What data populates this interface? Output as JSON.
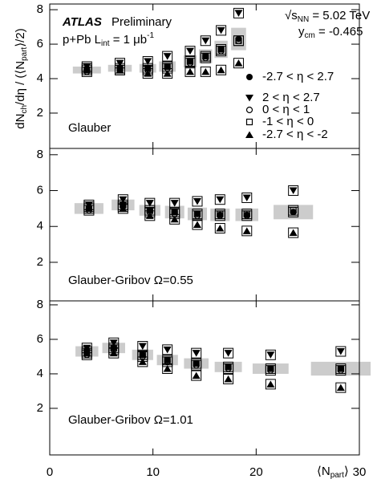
{
  "chart_data": [
    {
      "type": "scatter",
      "brand": "ATLAS",
      "status": "Preliminary",
      "luminosity": [
        "p+Pb L",
        "int",
        " = 1 μb",
        "-1"
      ],
      "energy": [
        "√s",
        "NN",
        " = 5.02 TeV"
      ],
      "rapidity": [
        "y",
        "cm",
        " = -0.465"
      ],
      "ylabel": [
        "dN",
        "ch",
        "/dη / (⟨N",
        "part",
        "⟩/2)"
      ],
      "annotation": "Glauber",
      "x": [
        3.6,
        6.8,
        9.5,
        11.4,
        13.6,
        15.1,
        16.6,
        18.3
      ],
      "xlim": [
        0,
        30
      ],
      "xticks": [
        0,
        10,
        20,
        30
      ],
      "ylim": [
        -0.05,
        8.33
      ],
      "yticks": [
        2,
        4,
        6,
        8
      ],
      "band_color": "#cccccc",
      "series": [
        {
          "name": "-2.7 < η < 2.7",
          "marker": "circle-filled",
          "color": "#000000",
          "values": [
            4.5,
            4.6,
            4.6,
            4.7,
            5.0,
            5.3,
            5.7,
            6.3
          ],
          "errors": [
            0.2,
            0.2,
            0.25,
            0.3,
            0.35,
            0.4,
            0.5,
            0.65
          ]
        },
        {
          "name": "2 < η < 2.7",
          "marker": "triangle-down",
          "color": "#000000",
          "values": [
            4.7,
            4.9,
            5.0,
            5.3,
            5.6,
            6.2,
            6.8,
            7.8
          ]
        },
        {
          "name": "0 < η < 1",
          "marker": "circle-open",
          "color": "#000000",
          "values": [
            4.4,
            4.5,
            4.5,
            4.6,
            4.9,
            5.2,
            5.6,
            6.2
          ]
        },
        {
          "name": "-1 < η < 0",
          "marker": "square-open",
          "color": "#000000",
          "values": [
            4.5,
            4.6,
            4.6,
            4.7,
            5.0,
            5.3,
            5.7,
            6.2
          ]
        },
        {
          "name": "-2.7 < η < -2",
          "marker": "triangle-up",
          "color": "#000000",
          "values": [
            4.6,
            4.5,
            4.3,
            4.3,
            4.4,
            4.4,
            4.5,
            4.9
          ]
        }
      ]
    },
    {
      "type": "scatter",
      "annotation": "Glauber-Gribov Ω=0.55",
      "x": [
        3.8,
        7.1,
        9.7,
        12.1,
        14.3,
        16.5,
        19.1,
        23.6
      ],
      "xlim": [
        0,
        30
      ],
      "xticks": [
        0,
        10,
        20,
        30
      ],
      "ylim": [
        -0.15,
        8.35
      ],
      "yticks": [
        2,
        4,
        6,
        8
      ],
      "band_color": "#cccccc",
      "series": [
        {
          "marker": "circle-filled",
          "color": "#000000",
          "values": [
            5.0,
            5.2,
            4.9,
            4.8,
            4.7,
            4.65,
            4.65,
            4.8
          ],
          "errors": [
            0.3,
            0.3,
            0.3,
            0.35,
            0.35,
            0.35,
            0.35,
            0.4
          ]
        },
        {
          "marker": "triangle-down",
          "color": "#000000",
          "values": [
            5.2,
            5.5,
            5.3,
            5.3,
            5.4,
            5.5,
            5.6,
            6.0
          ]
        },
        {
          "marker": "circle-open",
          "color": "#000000",
          "values": [
            4.9,
            5.1,
            4.8,
            4.7,
            4.6,
            4.6,
            4.6,
            4.8
          ]
        },
        {
          "marker": "square-open",
          "color": "#000000",
          "values": [
            5.0,
            5.2,
            4.9,
            4.8,
            4.7,
            4.7,
            4.7,
            4.9
          ]
        },
        {
          "marker": "triangle-up",
          "color": "#000000",
          "values": [
            5.1,
            5.0,
            4.6,
            4.4,
            4.1,
            3.9,
            3.75,
            3.65
          ]
        }
      ]
    },
    {
      "type": "scatter",
      "annotation": "Glauber-Gribov Ω=1.01",
      "xlabel": [
        "⟨N",
        "part",
        "⟩"
      ],
      "x": [
        3.6,
        6.2,
        9.0,
        11.4,
        14.2,
        17.3,
        21.4,
        28.2
      ],
      "xlim": [
        0,
        30
      ],
      "xticks": [
        0,
        10,
        20,
        30
      ],
      "ylim": [
        -0.7,
        8.23
      ],
      "yticks": [
        2,
        4,
        6,
        8
      ],
      "band_color": "#cccccc",
      "series": [
        {
          "marker": "circle-filled",
          "color": "#000000",
          "values": [
            5.3,
            5.5,
            5.1,
            4.8,
            4.6,
            4.4,
            4.3,
            4.3
          ],
          "errors": [
            0.3,
            0.3,
            0.3,
            0.3,
            0.3,
            0.3,
            0.3,
            0.4
          ]
        },
        {
          "marker": "triangle-down",
          "color": "#000000",
          "values": [
            5.5,
            5.8,
            5.6,
            5.4,
            5.2,
            5.2,
            5.1,
            5.3
          ]
        },
        {
          "marker": "circle-open",
          "color": "#000000",
          "values": [
            5.1,
            5.4,
            5.0,
            4.7,
            4.5,
            4.3,
            4.2,
            4.2
          ]
        },
        {
          "marker": "square-open",
          "color": "#000000",
          "values": [
            5.3,
            5.5,
            5.1,
            4.8,
            4.6,
            4.4,
            4.3,
            4.3
          ]
        },
        {
          "marker": "triangle-up",
          "color": "#000000",
          "values": [
            5.2,
            5.2,
            4.7,
            4.3,
            3.9,
            3.7,
            3.4,
            3.2
          ]
        }
      ]
    }
  ]
}
